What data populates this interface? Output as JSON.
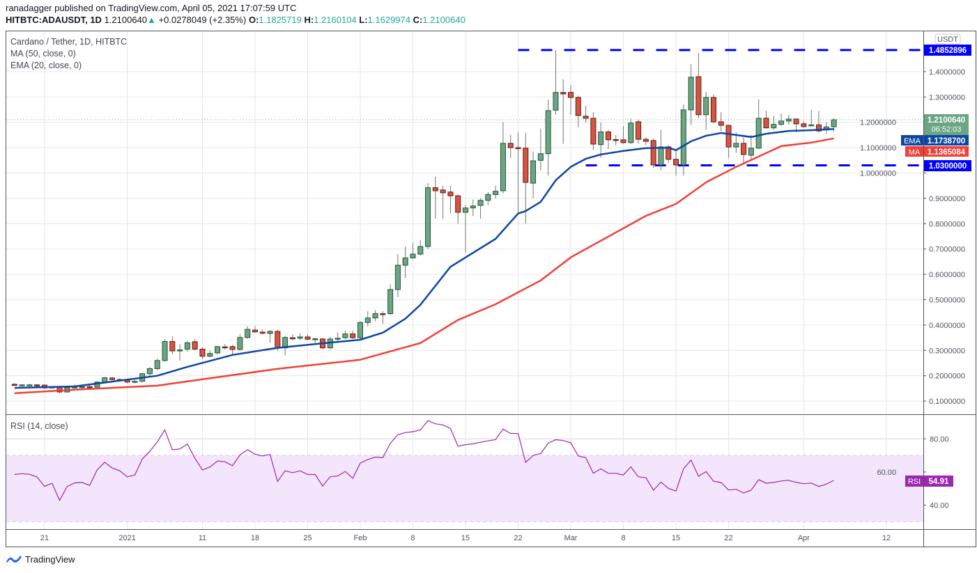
{
  "header": {
    "publisher": "ranadagger",
    "published_text": "published on TradingView.com, April 05, 2021 17:07:59 UTC",
    "symbol": "HITBTC:ADAUSDT, 1D",
    "last": "1.2100640",
    "change": "+0.0278049 (+2.35%)",
    "o_label": "O:",
    "o": "1.1825719",
    "h_label": "H:",
    "h": "1.2160104",
    "l_label": "L:",
    "l": "1.1629974",
    "c_label": "C:",
    "c": "1.2100640",
    "up_icon": "triangle-up-icon"
  },
  "legend": {
    "title": "Cardano / Tether, 1D, HITBTC",
    "ma": "MA (50, close, 0)",
    "ema": "EMA (20, close, 0)",
    "rsi": "RSI (14, close)"
  },
  "axis": {
    "currency": "USDT",
    "price_ticks": [
      "1.4000000",
      "1.3000000",
      "1.2000000",
      "1.1000000",
      "1.0000000",
      "0.9000000",
      "0.8000000",
      "0.7000000",
      "0.6000000",
      "0.5000000",
      "0.4000000",
      "0.3000000",
      "0.2000000",
      "0.1000000"
    ],
    "rsi_ticks": [
      "80.00",
      "60.00",
      "40.00"
    ],
    "time_ticks": [
      {
        "date": "2020-12-21",
        "label": "21"
      },
      {
        "date": "2021-01-01",
        "label": "2021"
      },
      {
        "date": "2021-01-11",
        "label": "11"
      },
      {
        "date": "2021-01-18",
        "label": "18"
      },
      {
        "date": "2021-01-25",
        "label": "25"
      },
      {
        "date": "2021-02-01",
        "label": "Feb"
      },
      {
        "date": "2021-02-08",
        "label": "8"
      },
      {
        "date": "2021-02-15",
        "label": "15"
      },
      {
        "date": "2021-02-22",
        "label": "22"
      },
      {
        "date": "2021-03-01",
        "label": "Mar"
      },
      {
        "date": "2021-03-08",
        "label": "8"
      },
      {
        "date": "2021-03-15",
        "label": "15"
      },
      {
        "date": "2021-03-22",
        "label": "22"
      },
      {
        "date": "2021-04-01",
        "label": "Apr"
      },
      {
        "date": "2021-04-12",
        "label": "12"
      }
    ]
  },
  "badges": {
    "resistance": "1.4852896",
    "price": "1.2100640",
    "countdown": "06:52:03",
    "ema_label": "EMA",
    "ema": "1.1738700",
    "ma_label": "MA",
    "ma": "1.1365084",
    "support": "1.0300000",
    "rsi_label": "RSI",
    "rsi": "54.91"
  },
  "footer": {
    "brand": "TradingView",
    "logo_icon": "tradingview-logo-icon"
  },
  "colors": {
    "up": "#6ba583",
    "up_border": "#225437",
    "down": "#d75442",
    "down_border": "#5b1a13",
    "ema": "#0d47a1",
    "ma": "#f23f37",
    "levels": "#0000ff",
    "rsi": "#9c27b0",
    "rsi_band": "#f3e5fc",
    "price_badge": "#6ba583"
  },
  "chart_data": {
    "type": "candlestick",
    "title": "Cardano / Tether, 1D, HITBTC",
    "ylabel": "USDT",
    "ylim": [
      0.048,
      1.559
    ],
    "xlim": [
      "2020-12-16",
      "2021-04-17"
    ],
    "grid": true,
    "columns": [
      "date",
      "open",
      "high",
      "low",
      "close"
    ],
    "candles": [
      [
        "2020-12-17",
        0.166,
        0.172,
        0.161,
        0.163
      ],
      [
        "2020-12-18",
        0.162,
        0.166,
        0.159,
        0.164
      ],
      [
        "2020-12-19",
        0.164,
        0.168,
        0.161,
        0.164
      ],
      [
        "2020-12-20",
        0.164,
        0.166,
        0.158,
        0.162
      ],
      [
        "2020-12-21",
        0.163,
        0.166,
        0.148,
        0.152
      ],
      [
        "2020-12-22",
        0.153,
        0.158,
        0.149,
        0.156
      ],
      [
        "2020-12-23",
        0.155,
        0.158,
        0.13,
        0.136
      ],
      [
        "2020-12-24",
        0.136,
        0.155,
        0.133,
        0.153
      ],
      [
        "2020-12-25",
        0.154,
        0.165,
        0.15,
        0.156
      ],
      [
        "2020-12-26",
        0.156,
        0.163,
        0.15,
        0.157
      ],
      [
        "2020-12-27",
        0.157,
        0.163,
        0.15,
        0.155
      ],
      [
        "2020-12-28",
        0.155,
        0.178,
        0.153,
        0.175
      ],
      [
        "2020-12-29",
        0.175,
        0.195,
        0.172,
        0.192
      ],
      [
        "2020-12-30",
        0.191,
        0.196,
        0.182,
        0.185
      ],
      [
        "2020-12-31",
        0.185,
        0.19,
        0.178,
        0.183
      ],
      [
        "2021-01-01",
        0.183,
        0.186,
        0.17,
        0.175
      ],
      [
        "2021-01-02",
        0.175,
        0.184,
        0.17,
        0.178
      ],
      [
        "2021-01-03",
        0.178,
        0.212,
        0.175,
        0.208
      ],
      [
        "2021-01-04",
        0.208,
        0.235,
        0.196,
        0.228
      ],
      [
        "2021-01-05",
        0.228,
        0.268,
        0.222,
        0.26
      ],
      [
        "2021-01-06",
        0.26,
        0.345,
        0.255,
        0.335
      ],
      [
        "2021-01-07",
        0.335,
        0.355,
        0.285,
        0.298
      ],
      [
        "2021-01-08",
        0.298,
        0.325,
        0.26,
        0.302
      ],
      [
        "2021-01-09",
        0.305,
        0.338,
        0.295,
        0.33
      ],
      [
        "2021-01-10",
        0.334,
        0.346,
        0.3,
        0.305
      ],
      [
        "2021-01-11",
        0.305,
        0.312,
        0.265,
        0.277
      ],
      [
        "2021-01-12",
        0.277,
        0.3,
        0.272,
        0.288
      ],
      [
        "2021-01-13",
        0.29,
        0.318,
        0.285,
        0.315
      ],
      [
        "2021-01-14",
        0.314,
        0.325,
        0.305,
        0.312
      ],
      [
        "2021-01-15",
        0.315,
        0.322,
        0.28,
        0.304
      ],
      [
        "2021-01-16",
        0.304,
        0.365,
        0.3,
        0.351
      ],
      [
        "2021-01-17",
        0.351,
        0.395,
        0.345,
        0.383
      ],
      [
        "2021-01-18",
        0.38,
        0.395,
        0.37,
        0.373
      ],
      [
        "2021-01-19",
        0.372,
        0.382,
        0.362,
        0.37
      ],
      [
        "2021-01-20",
        0.367,
        0.38,
        0.33,
        0.375
      ],
      [
        "2021-01-21",
        0.375,
        0.382,
        0.3,
        0.31
      ],
      [
        "2021-01-22",
        0.31,
        0.358,
        0.28,
        0.351
      ],
      [
        "2021-01-23",
        0.35,
        0.362,
        0.34,
        0.348
      ],
      [
        "2021-01-24",
        0.348,
        0.368,
        0.34,
        0.353
      ],
      [
        "2021-01-25",
        0.353,
        0.365,
        0.34,
        0.344
      ],
      [
        "2021-01-26",
        0.344,
        0.35,
        0.33,
        0.346
      ],
      [
        "2021-01-27",
        0.345,
        0.35,
        0.305,
        0.31
      ],
      [
        "2021-01-28",
        0.31,
        0.355,
        0.305,
        0.345
      ],
      [
        "2021-01-29",
        0.345,
        0.372,
        0.33,
        0.348
      ],
      [
        "2021-01-30",
        0.35,
        0.378,
        0.345,
        0.365
      ],
      [
        "2021-01-31",
        0.365,
        0.378,
        0.345,
        0.35
      ],
      [
        "2021-02-01",
        0.35,
        0.415,
        0.345,
        0.41
      ],
      [
        "2021-02-02",
        0.41,
        0.455,
        0.395,
        0.428
      ],
      [
        "2021-02-03",
        0.428,
        0.458,
        0.415,
        0.445
      ],
      [
        "2021-02-04",
        0.445,
        0.455,
        0.405,
        0.442
      ],
      [
        "2021-02-05",
        0.445,
        0.56,
        0.44,
        0.54
      ],
      [
        "2021-02-06",
        0.54,
        0.68,
        0.51,
        0.636
      ],
      [
        "2021-02-07",
        0.636,
        0.71,
        0.585,
        0.665
      ],
      [
        "2021-02-08",
        0.665,
        0.725,
        0.66,
        0.68
      ],
      [
        "2021-02-09",
        0.68,
        0.735,
        0.675,
        0.71
      ],
      [
        "2021-02-10",
        0.71,
        0.96,
        0.7,
        0.942
      ],
      [
        "2021-02-11",
        0.942,
        0.985,
        0.82,
        0.93
      ],
      [
        "2021-02-12",
        0.933,
        0.95,
        0.82,
        0.922
      ],
      [
        "2021-02-13",
        0.925,
        0.95,
        0.84,
        0.91
      ],
      [
        "2021-02-14",
        0.91,
        0.915,
        0.8,
        0.845
      ],
      [
        "2021-02-15",
        0.845,
        0.875,
        0.686,
        0.862
      ],
      [
        "2021-02-16",
        0.862,
        0.895,
        0.83,
        0.87
      ],
      [
        "2021-02-17",
        0.872,
        0.9,
        0.82,
        0.892
      ],
      [
        "2021-02-18",
        0.892,
        0.925,
        0.875,
        0.915
      ],
      [
        "2021-02-19",
        0.915,
        0.95,
        0.9,
        0.928
      ],
      [
        "2021-02-20",
        0.93,
        1.2,
        0.92,
        1.117
      ],
      [
        "2021-02-21",
        1.117,
        1.15,
        1.06,
        1.1
      ],
      [
        "2021-02-22",
        1.1,
        1.16,
        0.84,
        1.098
      ],
      [
        "2021-02-23",
        1.098,
        1.158,
        0.8,
        0.963
      ],
      [
        "2021-02-24",
        0.96,
        1.085,
        0.9,
        1.048
      ],
      [
        "2021-02-25",
        1.05,
        1.175,
        1.01,
        1.076
      ],
      [
        "2021-02-26",
        1.076,
        1.29,
        0.99,
        1.246
      ],
      [
        "2021-02-27",
        1.248,
        1.485,
        1.23,
        1.318
      ],
      [
        "2021-02-28",
        1.318,
        1.37,
        1.115,
        1.312
      ],
      [
        "2021-03-01",
        1.318,
        1.347,
        1.23,
        1.298
      ],
      [
        "2021-03-02",
        1.298,
        1.305,
        1.18,
        1.227
      ],
      [
        "2021-03-03",
        1.224,
        1.265,
        1.2,
        1.216
      ],
      [
        "2021-03-04",
        1.216,
        1.24,
        1.09,
        1.114
      ],
      [
        "2021-03-05",
        1.112,
        1.2,
        1.06,
        1.162
      ],
      [
        "2021-03-06",
        1.162,
        1.17,
        1.095,
        1.131
      ],
      [
        "2021-03-07",
        1.132,
        1.15,
        1.11,
        1.13
      ],
      [
        "2021-03-08",
        1.131,
        1.185,
        1.115,
        1.12
      ],
      [
        "2021-03-09",
        1.12,
        1.215,
        1.115,
        1.197
      ],
      [
        "2021-03-10",
        1.202,
        1.21,
        1.115,
        1.133
      ],
      [
        "2021-03-11",
        1.133,
        1.14,
        1.11,
        1.125
      ],
      [
        "2021-03-12",
        1.128,
        1.135,
        1.02,
        1.032
      ],
      [
        "2021-03-13",
        1.032,
        1.17,
        1.01,
        1.103
      ],
      [
        "2021-03-14",
        1.103,
        1.11,
        1.04,
        1.054
      ],
      [
        "2021-03-15",
        1.054,
        1.09,
        0.99,
        1.032
      ],
      [
        "2021-03-16",
        1.032,
        1.27,
        0.99,
        1.249
      ],
      [
        "2021-03-17",
        1.249,
        1.43,
        1.19,
        1.378
      ],
      [
        "2021-03-18",
        1.38,
        1.474,
        1.215,
        1.23
      ],
      [
        "2021-03-19",
        1.23,
        1.32,
        1.17,
        1.298
      ],
      [
        "2021-03-20",
        1.298,
        1.31,
        1.195,
        1.202
      ],
      [
        "2021-03-21",
        1.202,
        1.24,
        1.165,
        1.188
      ],
      [
        "2021-03-22",
        1.188,
        1.19,
        1.06,
        1.103
      ],
      [
        "2021-03-23",
        1.103,
        1.16,
        1.08,
        1.117
      ],
      [
        "2021-03-24",
        1.117,
        1.14,
        1.04,
        1.073
      ],
      [
        "2021-03-25",
        1.07,
        1.15,
        1.05,
        1.098
      ],
      [
        "2021-03-26",
        1.098,
        1.29,
        1.095,
        1.216
      ],
      [
        "2021-03-27",
        1.216,
        1.245,
        1.175,
        1.178
      ],
      [
        "2021-03-28",
        1.178,
        1.225,
        1.17,
        1.192
      ],
      [
        "2021-03-29",
        1.192,
        1.235,
        1.185,
        1.205
      ],
      [
        "2021-03-30",
        1.205,
        1.23,
        1.19,
        1.213
      ],
      [
        "2021-03-31",
        1.213,
        1.215,
        1.16,
        1.194
      ],
      [
        "2021-04-01",
        1.194,
        1.205,
        1.178,
        1.183
      ],
      [
        "2021-04-02",
        1.187,
        1.25,
        1.185,
        1.19
      ],
      [
        "2021-04-03",
        1.19,
        1.245,
        1.16,
        1.166
      ],
      [
        "2021-04-04",
        1.17,
        1.2,
        1.155,
        1.182
      ],
      [
        "2021-04-05",
        1.1826,
        1.216,
        1.163,
        1.2101
      ]
    ],
    "ema20": [
      [
        "2020-12-17",
        0.152
      ],
      [
        "2020-12-25",
        0.158
      ],
      [
        "2021-01-05",
        0.2
      ],
      [
        "2021-01-09",
        0.235
      ],
      [
        "2021-01-15",
        0.282
      ],
      [
        "2021-01-21",
        0.31
      ],
      [
        "2021-01-27",
        0.328
      ],
      [
        "2021-02-01",
        0.342
      ],
      [
        "2021-02-04",
        0.37
      ],
      [
        "2021-02-07",
        0.425
      ],
      [
        "2021-02-09",
        0.48
      ],
      [
        "2021-02-13",
        0.63
      ],
      [
        "2021-02-19",
        0.74
      ],
      [
        "2021-02-22",
        0.84
      ],
      [
        "2021-02-23",
        0.85
      ],
      [
        "2021-02-25",
        0.886
      ],
      [
        "2021-02-27",
        0.971
      ],
      [
        "2021-03-01",
        1.024
      ],
      [
        "2021-03-03",
        1.056
      ],
      [
        "2021-03-05",
        1.073
      ],
      [
        "2021-03-08",
        1.087
      ],
      [
        "2021-03-11",
        1.098
      ],
      [
        "2021-03-14",
        1.1
      ],
      [
        "2021-03-15",
        1.09
      ],
      [
        "2021-03-17",
        1.125
      ],
      [
        "2021-03-19",
        1.147
      ],
      [
        "2021-03-21",
        1.158
      ],
      [
        "2021-03-23",
        1.15
      ],
      [
        "2021-03-25",
        1.142
      ],
      [
        "2021-03-27",
        1.155
      ],
      [
        "2021-03-30",
        1.166
      ],
      [
        "2021-04-02",
        1.169
      ],
      [
        "2021-04-05",
        1.1739
      ]
    ],
    "ma50": [
      [
        "2020-12-17",
        0.131
      ],
      [
        "2020-12-25",
        0.145
      ],
      [
        "2021-01-05",
        0.161
      ],
      [
        "2021-01-11",
        0.186
      ],
      [
        "2021-01-21",
        0.227
      ],
      [
        "2021-02-01",
        0.263
      ],
      [
        "2021-02-05",
        0.296
      ],
      [
        "2021-02-09",
        0.329
      ],
      [
        "2021-02-14",
        0.42
      ],
      [
        "2021-02-19",
        0.482
      ],
      [
        "2021-02-25",
        0.576
      ],
      [
        "2021-03-01",
        0.667
      ],
      [
        "2021-03-06",
        0.749
      ],
      [
        "2021-03-11",
        0.831
      ],
      [
        "2021-03-15",
        0.878
      ],
      [
        "2021-03-19",
        0.963
      ],
      [
        "2021-03-23",
        1.024
      ],
      [
        "2021-03-26",
        1.065
      ],
      [
        "2021-03-29",
        1.106
      ],
      [
        "2021-04-02",
        1.12
      ],
      [
        "2021-04-05",
        1.1365
      ]
    ],
    "levels": [
      {
        "name": "resistance",
        "value": 1.4852896,
        "from": "2021-02-22"
      },
      {
        "name": "support",
        "value": 1.03,
        "from": "2021-03-03"
      }
    ],
    "rsi": {
      "ylim": [
        25.5,
        94
      ],
      "bands": [
        30,
        70
      ],
      "values": [
        58.5,
        59,
        58.6,
        57,
        51.3,
        53.2,
        42.8,
        51.2,
        53.4,
        53.7,
        51.9,
        61.3,
        65.9,
        62.4,
        60.7,
        57.1,
        58.1,
        67.8,
        72.5,
        78.1,
        85.4,
        73.4,
        73.9,
        76.9,
        68.3,
        61.2,
        63,
        66.6,
        66.2,
        63.8,
        70.3,
        73.4,
        70.7,
        69.7,
        70.6,
        54.3,
        60.7,
        59.6,
        60.7,
        58.5,
        58.5,
        51.5,
        57.1,
        57.6,
        60.3,
        56.2,
        65.4,
        67.5,
        69,
        68.6,
        77.3,
        82.5,
        83.8,
        84.3,
        85.4,
        91,
        89.1,
        88.4,
        86.3,
        75.6,
        76.5,
        77,
        78,
        78.8,
        79.5,
        85.9,
        83.3,
        83.2,
        65.8,
        70,
        71.1,
        77.4,
        79.5,
        79,
        77.6,
        69.7,
        68.6,
        59.3,
        61.9,
        59.2,
        59.2,
        58.2,
        63.1,
        57.1,
        56.5,
        49,
        53.9,
        50.1,
        48.5,
        61.9,
        67.2,
        57.4,
        60.2,
        54.4,
        53.6,
        49.1,
        49.6,
        47.3,
        49,
        55.4,
        53.2,
        53.7,
        54.6,
        55,
        53.7,
        52.9,
        53.3,
        51.2,
        52.7,
        54.91
      ]
    }
  }
}
